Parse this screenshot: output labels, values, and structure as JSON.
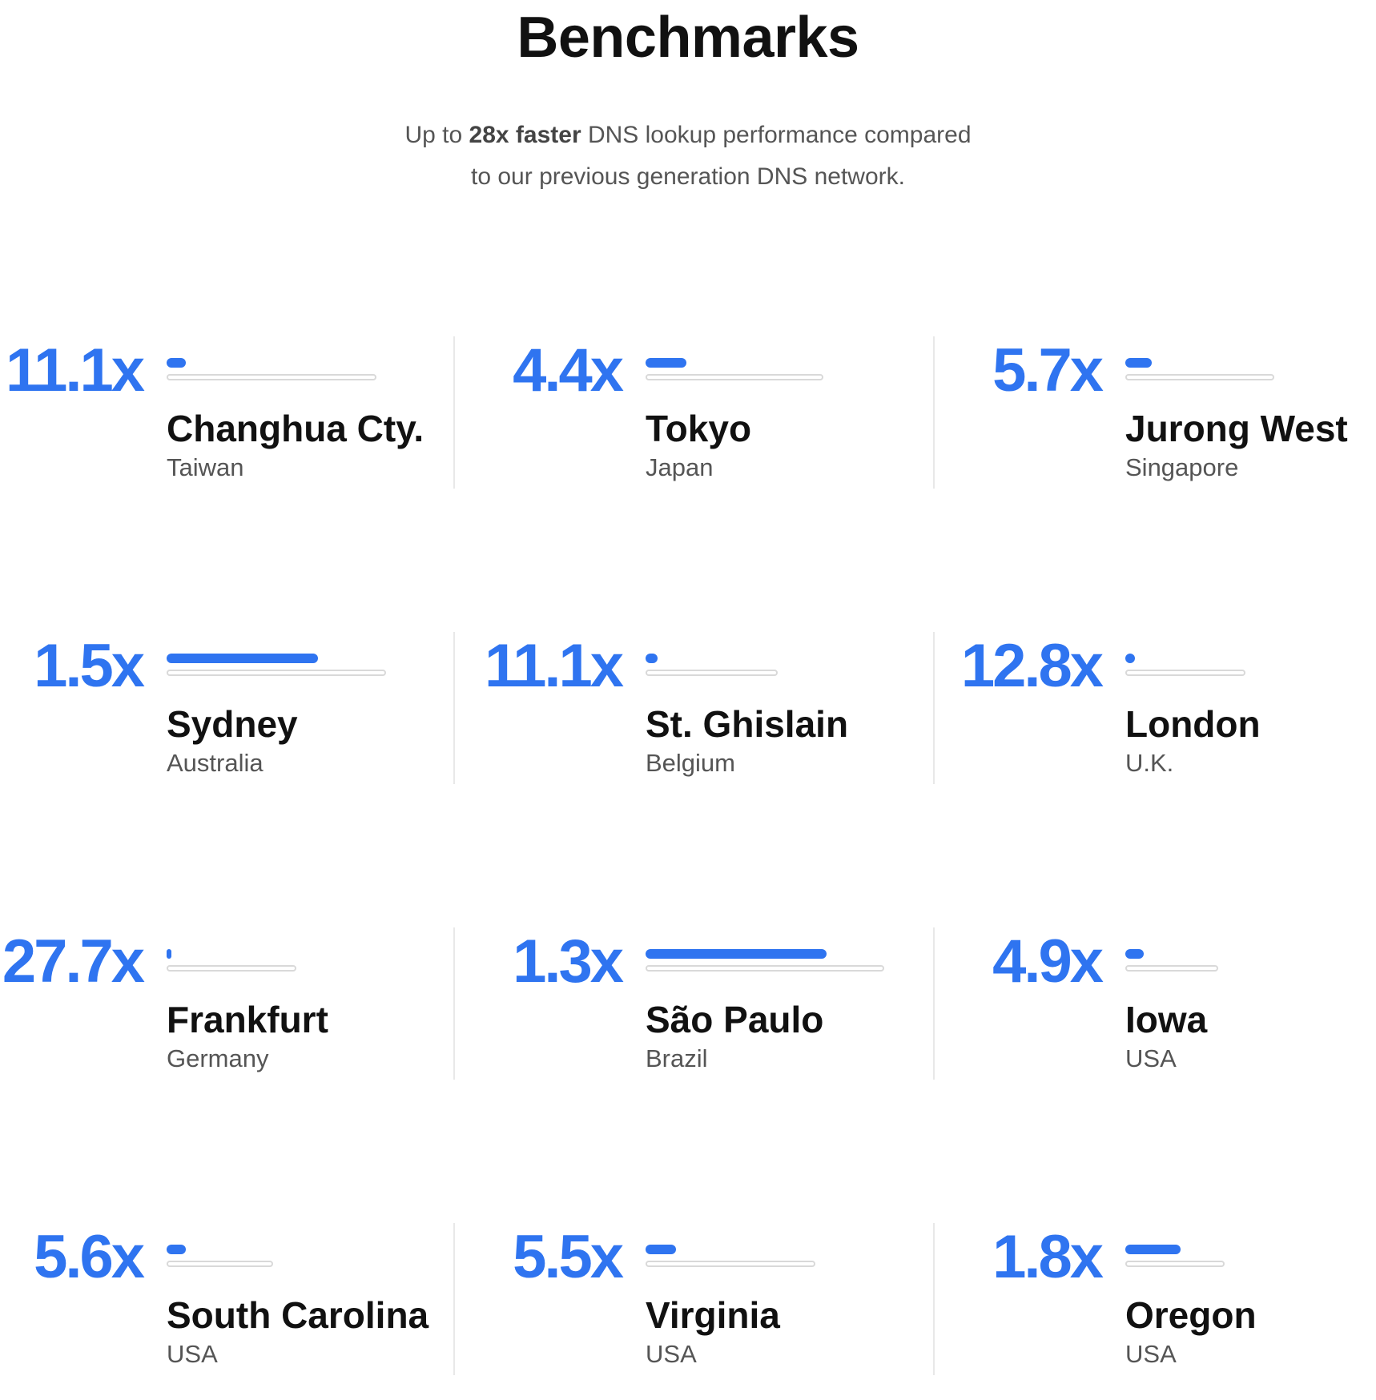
{
  "header": {
    "title": "Benchmarks",
    "subtitle_prefix": "Up to ",
    "subtitle_bold": "28x faster",
    "subtitle_line1_rest": " DNS lookup performance compared",
    "subtitle_line2": "to our previous generation DNS network."
  },
  "colors": {
    "accent": "#2f74f0",
    "track": "#d9d9d9",
    "divider": "#e8e8e8"
  },
  "benchmarks": [
    {
      "value": "11.1x",
      "city": "Changhua Cty.",
      "country": "Taiwan",
      "bar_fill_fraction": 0.09
    },
    {
      "value": "4.4x",
      "city": "Tokyo",
      "country": "Japan",
      "bar_fill_fraction": 0.23
    },
    {
      "value": "5.7x",
      "city": "Jurong West",
      "country": "Singapore",
      "bar_fill_fraction": 0.18
    },
    {
      "value": "1.5x",
      "city": "Sydney",
      "country": "Australia",
      "bar_fill_fraction": 0.69
    },
    {
      "value": "11.1x",
      "city": "St. Ghislain",
      "country": "Belgium",
      "bar_fill_fraction": 0.09
    },
    {
      "value": "12.8x",
      "city": "London",
      "country": "U.K.",
      "bar_fill_fraction": 0.08
    },
    {
      "value": "27.7x",
      "city": "Frankfurt",
      "country": "Germany",
      "bar_fill_fraction": 0.04
    },
    {
      "value": "1.3x",
      "city": "São Paulo",
      "country": "Brazil",
      "bar_fill_fraction": 0.76
    },
    {
      "value": "4.9x",
      "city": "Iowa",
      "country": "USA",
      "bar_fill_fraction": 0.2
    },
    {
      "value": "5.6x",
      "city": "South Carolina",
      "country": "USA",
      "bar_fill_fraction": 0.18
    },
    {
      "value": "5.5x",
      "city": "Virginia",
      "country": "USA",
      "bar_fill_fraction": 0.18
    },
    {
      "value": "1.8x",
      "city": "Oregon",
      "country": "USA",
      "bar_fill_fraction": 0.56
    }
  ]
}
